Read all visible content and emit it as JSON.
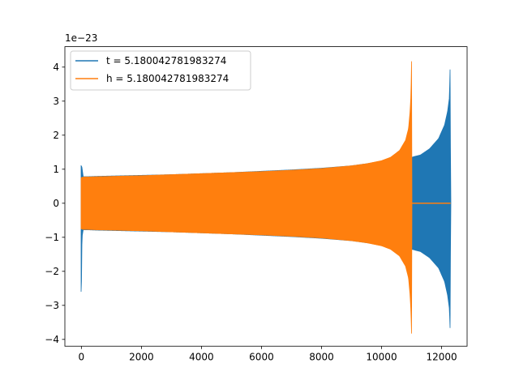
{
  "chart_data": {
    "type": "line",
    "title": "",
    "xlabel": "",
    "ylabel": "",
    "xlim": [
      -550,
      12850
    ],
    "ylim": [
      -4.2,
      4.6
    ],
    "y_offset_label": "1e−23",
    "x_ticks": [
      0,
      2000,
      4000,
      6000,
      8000,
      10000,
      12000
    ],
    "x_tick_labels": [
      "0",
      "2000",
      "4000",
      "6000",
      "8000",
      "10000",
      "12000"
    ],
    "y_ticks": [
      -4,
      -3,
      -2,
      -1,
      0,
      1,
      2,
      3,
      4
    ],
    "y_tick_labels": [
      "−4",
      "−3",
      "−2",
      "−1",
      "0",
      "1",
      "2",
      "3",
      "4"
    ],
    "grid": false,
    "legend_position": "upper-left",
    "series": [
      {
        "name": "t = 5.180042781983274",
        "color": "#1f77b4",
        "style": "oscillating-envelope",
        "x": [
          0,
          20,
          60,
          200,
          500,
          1000,
          2000,
          3000,
          4000,
          5000,
          6000,
          7000,
          8000,
          9000,
          10000,
          10500,
          11000,
          11300,
          11600,
          11900,
          12100,
          12200,
          12260,
          12290,
          12300
        ],
        "upper": [
          1.1,
          1.05,
          0.78,
          0.78,
          0.79,
          0.8,
          0.82,
          0.84,
          0.87,
          0.9,
          0.94,
          0.98,
          1.03,
          1.1,
          1.22,
          1.28,
          1.35,
          1.42,
          1.6,
          1.9,
          2.3,
          2.7,
          3.1,
          4.2,
          0
        ],
        "lower": [
          -2.6,
          -1.0,
          -0.78,
          -0.78,
          -0.79,
          -0.8,
          -0.82,
          -0.84,
          -0.87,
          -0.9,
          -0.94,
          -0.98,
          -1.03,
          -1.1,
          -1.22,
          -1.28,
          -1.35,
          -1.42,
          -1.6,
          -1.9,
          -2.3,
          -2.7,
          -3.1,
          -3.85,
          0
        ]
      },
      {
        "name": "h = 5.180042781983274",
        "color": "#ff7f0e",
        "style": "oscillating-envelope-then-flat",
        "x": [
          0,
          60,
          200,
          500,
          1000,
          2000,
          3000,
          4000,
          5000,
          6000,
          7000,
          8000,
          9000,
          9500,
          10000,
          10300,
          10600,
          10800,
          10900,
          10950,
          10980,
          11000,
          11010
        ],
        "upper": [
          0.75,
          0.77,
          0.77,
          0.78,
          0.79,
          0.81,
          0.84,
          0.87,
          0.9,
          0.93,
          0.97,
          1.02,
          1.1,
          1.16,
          1.25,
          1.35,
          1.55,
          1.85,
          2.2,
          2.7,
          3.2,
          4.2,
          0
        ],
        "lower": [
          -0.75,
          -0.77,
          -0.77,
          -0.78,
          -0.79,
          -0.81,
          -0.84,
          -0.87,
          -0.9,
          -0.93,
          -0.97,
          -1.02,
          -1.1,
          -1.16,
          -1.25,
          -1.35,
          -1.55,
          -1.85,
          -2.2,
          -2.7,
          -3.2,
          -3.85,
          0
        ],
        "flat_after": {
          "x_start": 11010,
          "x_end": 12300,
          "y": 0
        }
      }
    ]
  }
}
